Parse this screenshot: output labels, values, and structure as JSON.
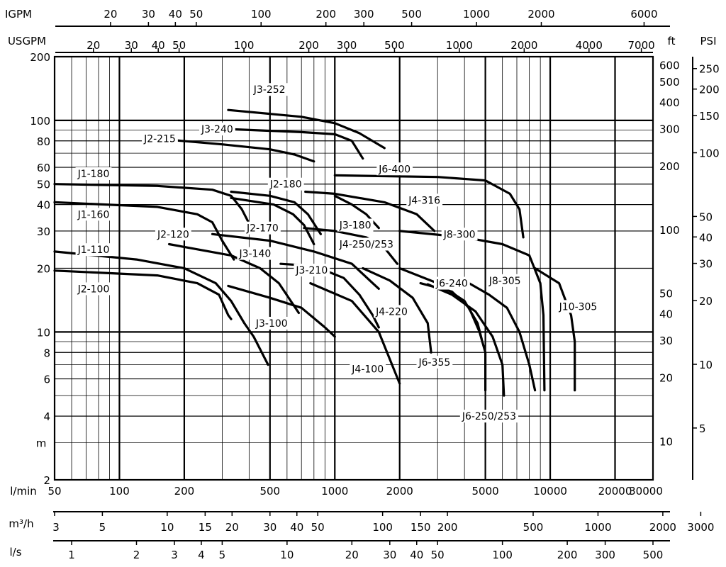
{
  "chart_data": {
    "type": "line",
    "x_scale": "log",
    "y_scale": "log",
    "xlim": [
      50,
      30000
    ],
    "ylim": [
      2,
      200
    ],
    "axis_units": {
      "flow_primary": "l/min",
      "head_primary": "m",
      "igpm": "IGPM",
      "usgpm": "USGPM",
      "ft": "ft",
      "psi": "PSI",
      "m3h": "m³/h",
      "ls": "l/s"
    },
    "ticks": {
      "lmin": [
        50,
        100,
        200,
        500,
        1000,
        2000,
        5000,
        10000,
        20000,
        30000
      ],
      "m": [
        2,
        4,
        6,
        8,
        10,
        20,
        30,
        40,
        50,
        60,
        80,
        100,
        200
      ],
      "igpm": [
        20,
        30,
        40,
        50,
        100,
        200,
        300,
        500,
        1000,
        2000,
        6000
      ],
      "usgpm": [
        20,
        30,
        40,
        50,
        100,
        200,
        300,
        500,
        1000,
        2000,
        4000,
        7000
      ],
      "ft": [
        10,
        20,
        30,
        40,
        50,
        100,
        200,
        300,
        400,
        500,
        600
      ],
      "psi": [
        5,
        10,
        20,
        30,
        40,
        50,
        100,
        150,
        200,
        250
      ],
      "m3h": [
        3,
        5,
        10,
        15,
        20,
        30,
        40,
        50,
        100,
        150,
        200,
        500,
        1000,
        2000,
        3000
      ],
      "ls": [
        1,
        2,
        3,
        4,
        5,
        10,
        20,
        30,
        40,
        50,
        100,
        200,
        300,
        500
      ]
    },
    "grid_y": [
      3,
      4,
      5,
      6,
      7,
      8,
      9,
      10,
      20,
      30,
      40,
      50,
      60,
      70,
      80,
      90,
      100,
      200
    ],
    "grid_x": [
      60,
      70,
      80,
      90,
      100,
      200,
      300,
      400,
      500,
      600,
      700,
      800,
      900,
      1000,
      2000,
      3000,
      4000,
      5000,
      6000,
      7000,
      8000,
      9000,
      10000,
      20000,
      30000
    ],
    "series": [
      {
        "name": "J3-252",
        "label_at": [
          420,
          140
        ],
        "points": [
          [
            320,
            112
          ],
          [
            700,
            104
          ],
          [
            1000,
            97
          ],
          [
            1300,
            87
          ],
          [
            1700,
            74
          ]
        ]
      },
      {
        "name": "J3-240",
        "label_at": [
          240,
          91
        ],
        "points": [
          [
            320,
            91
          ],
          [
            700,
            88
          ],
          [
            1000,
            86
          ],
          [
            1200,
            80
          ],
          [
            1350,
            66
          ]
        ]
      },
      {
        "name": "J2-215",
        "label_at": [
          130,
          82
        ],
        "points": [
          [
            170,
            81
          ],
          [
            300,
            77
          ],
          [
            500,
            73
          ],
          [
            650,
            69
          ],
          [
            800,
            64
          ]
        ]
      },
      {
        "name": "J1-180",
        "label_at": [
          64,
          56
        ],
        "points": [
          [
            50,
            50
          ],
          [
            150,
            49
          ],
          [
            270,
            47
          ],
          [
            330,
            44
          ],
          [
            370,
            38
          ],
          [
            410,
            31
          ]
        ]
      },
      {
        "name": "J6-400",
        "label_at": [
          1600,
          59
        ],
        "points": [
          [
            1000,
            55
          ],
          [
            3000,
            54
          ],
          [
            5000,
            52
          ],
          [
            6500,
            45
          ],
          [
            7200,
            38
          ],
          [
            7500,
            28
          ]
        ]
      },
      {
        "name": "J2-180",
        "label_at": [
          500,
          50
        ],
        "points": [
          [
            330,
            46
          ],
          [
            500,
            44
          ],
          [
            650,
            41
          ],
          [
            750,
            36
          ],
          [
            860,
            29
          ]
        ]
      },
      {
        "name": "J4-316",
        "label_at": [
          2200,
          42
        ],
        "points": [
          [
            730,
            46
          ],
          [
            1000,
            45
          ],
          [
            1700,
            41
          ],
          [
            2400,
            36
          ],
          [
            2900,
            30
          ]
        ]
      },
      {
        "name": "J3-180",
        "label_at": [
          1050,
          32
        ],
        "points": [
          [
            1000,
            44
          ],
          [
            1200,
            40
          ],
          [
            1400,
            36
          ],
          [
            1600,
            31
          ]
        ]
      },
      {
        "name": "J1-160",
        "label_at": [
          64,
          36
        ],
        "points": [
          [
            50,
            41
          ],
          [
            150,
            39
          ],
          [
            230,
            36
          ],
          [
            270,
            33
          ],
          [
            300,
            27
          ],
          [
            340,
            22
          ]
        ]
      },
      {
        "name": "J2-170",
        "label_at": [
          390,
          31
        ],
        "points": [
          [
            330,
            43
          ],
          [
            520,
            40
          ],
          [
            640,
            36
          ],
          [
            720,
            32
          ],
          [
            800,
            26
          ]
        ]
      },
      {
        "name": "J4-250/253",
        "label_at": [
          1050,
          26
        ],
        "points": [
          [
            720,
            31
          ],
          [
            1000,
            30
          ],
          [
            1400,
            28
          ],
          [
            1700,
            25
          ],
          [
            1950,
            21
          ]
        ]
      },
      {
        "name": "J8-300",
        "label_at": [
          3200,
          29
        ],
        "points": [
          [
            2000,
            30
          ],
          [
            4000,
            28
          ],
          [
            6000,
            26
          ],
          [
            8000,
            23
          ],
          [
            9000,
            17
          ],
          [
            9300,
            12
          ],
          [
            9400,
            5.3
          ]
        ]
      },
      {
        "name": "J2-120",
        "label_at": [
          150,
          29
        ],
        "points": [
          [
            170,
            26
          ],
          [
            330,
            23
          ],
          [
            450,
            20
          ],
          [
            550,
            17
          ],
          [
            680,
            12.3
          ]
        ]
      },
      {
        "name": "J3-140",
        "label_at": [
          360,
          23.5
        ],
        "points": [
          [
            270,
            29
          ],
          [
            500,
            27
          ],
          [
            800,
            24
          ],
          [
            1200,
            21
          ],
          [
            1500,
            17
          ],
          [
            1600,
            16
          ]
        ]
      },
      {
        "name": "J1-110",
        "label_at": [
          64,
          24.5
        ],
        "points": [
          [
            50,
            24
          ],
          [
            120,
            22
          ],
          [
            200,
            20
          ],
          [
            280,
            17
          ],
          [
            330,
            14
          ],
          [
            380,
            11
          ],
          [
            420,
            9.5
          ],
          [
            490,
            7
          ]
        ]
      },
      {
        "name": "J3-210",
        "label_at": [
          660,
          19.6
        ],
        "points": [
          [
            560,
            21
          ],
          [
            800,
            20.5
          ],
          [
            1100,
            18
          ],
          [
            1300,
            15
          ],
          [
            1500,
            12
          ],
          [
            1600,
            10.5
          ]
        ]
      },
      {
        "name": "J6-240",
        "label_at": [
          2950,
          17
        ],
        "points": [
          [
            2500,
            17
          ],
          [
            3500,
            15.5
          ],
          [
            4200,
            13
          ],
          [
            4700,
            10
          ],
          [
            5000,
            8
          ],
          [
            5000,
            5.3
          ]
        ]
      },
      {
        "name": "J8-305",
        "label_at": [
          5200,
          17.5
        ],
        "points": [
          [
            4200,
            17
          ],
          [
            5200,
            15
          ],
          [
            6300,
            13
          ],
          [
            7200,
            10
          ],
          [
            8000,
            7
          ],
          [
            8500,
            5.3
          ]
        ]
      },
      {
        "name": "J10-305",
        "label_at": [
          11000,
          13.2
        ],
        "points": [
          [
            8500,
            20
          ],
          [
            11000,
            17
          ],
          [
            12500,
            12
          ],
          [
            13000,
            9
          ],
          [
            13000,
            5.3
          ]
        ]
      },
      {
        "name": "J2-100",
        "label_at": [
          64,
          16
        ],
        "points": [
          [
            50,
            19.5
          ],
          [
            150,
            18.5
          ],
          [
            230,
            17
          ],
          [
            290,
            15
          ],
          [
            320,
            12
          ],
          [
            330,
            11.5
          ]
        ]
      },
      {
        "name": "J3-100",
        "label_at": [
          430,
          11
        ],
        "points": [
          [
            320,
            16.5
          ],
          [
            500,
            14.5
          ],
          [
            700,
            13
          ],
          [
            900,
            10.5
          ],
          [
            1000,
            9.5
          ]
        ]
      },
      {
        "name": "J4-220",
        "label_at": [
          1550,
          12.5
        ],
        "points": [
          [
            1350,
            20
          ],
          [
            1800,
            17.5
          ],
          [
            2300,
            14.5
          ],
          [
            2700,
            11
          ],
          [
            2800,
            8
          ]
        ]
      },
      {
        "name": "J4-100",
        "label_at": [
          1200,
          6.7
        ],
        "points": [
          [
            770,
            17
          ],
          [
            1200,
            14
          ],
          [
            1600,
            10
          ],
          [
            2000,
            5.7
          ]
        ]
      },
      {
        "name": "J6-355",
        "label_at": [
          2450,
          7.2
        ],
        "points": [
          [
            2000,
            20
          ],
          [
            3000,
            17
          ],
          [
            4000,
            14
          ],
          [
            4600,
            11
          ],
          [
            4800,
            9.3
          ]
        ]
      },
      {
        "name": "J6-250/253",
        "label_at": [
          3900,
          4
        ],
        "points": [
          [
            2700,
            16.8
          ],
          [
            3500,
            15
          ],
          [
            4500,
            12.5
          ],
          [
            5400,
            9.5
          ],
          [
            6000,
            7
          ],
          [
            6100,
            5
          ]
        ]
      }
    ]
  }
}
